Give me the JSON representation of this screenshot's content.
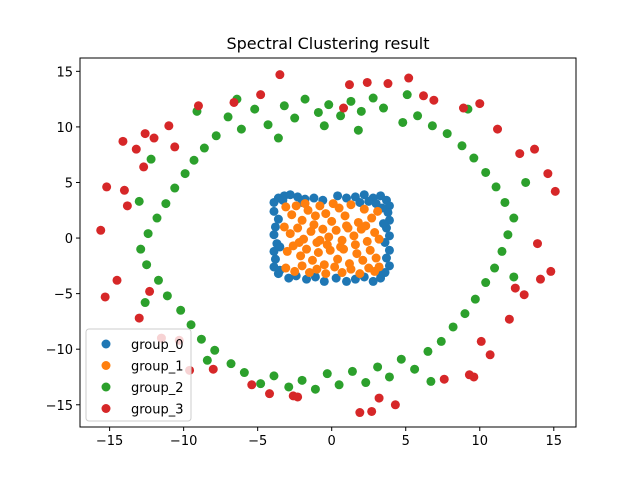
{
  "chart_data": {
    "type": "scatter",
    "title": "Spectral Clustering result",
    "xlim": [
      -17,
      16.5
    ],
    "ylim": [
      -17,
      16.2
    ],
    "x_ticks": [
      -15,
      -10,
      -5,
      0,
      5,
      10,
      15
    ],
    "y_ticks": [
      -15,
      -10,
      -5,
      0,
      5,
      10,
      15
    ],
    "grid": false,
    "legend_position": "lower-left",
    "series": [
      {
        "name": "group_0",
        "color": "#1f77b4",
        "points": [
          [
            -3.9,
            3.2
          ],
          [
            -3.6,
            3.6
          ],
          [
            -3.2,
            3.8
          ],
          [
            -2.8,
            3.9
          ],
          [
            -2.3,
            3.7
          ],
          [
            -1.8,
            3.5
          ],
          [
            -1.2,
            3.6
          ],
          [
            -0.6,
            3.4
          ],
          [
            0.4,
            3.8
          ],
          [
            1.0,
            3.6
          ],
          [
            1.6,
            3.7
          ],
          [
            2.2,
            3.9
          ],
          [
            2.8,
            3.6
          ],
          [
            3.3,
            3.8
          ],
          [
            3.7,
            3.4
          ],
          [
            3.9,
            2.9
          ],
          [
            3.8,
            2.3
          ],
          [
            3.9,
            1.6
          ],
          [
            3.7,
            0.9
          ],
          [
            3.9,
            0.2
          ],
          [
            3.6,
            -0.4
          ],
          [
            3.9,
            -1.1
          ],
          [
            3.7,
            -1.8
          ],
          [
            3.9,
            -2.5
          ],
          [
            3.6,
            -3.1
          ],
          [
            3.3,
            -3.6
          ],
          [
            2.8,
            -3.9
          ],
          [
            2.2,
            -3.5
          ],
          [
            1.6,
            -3.7
          ],
          [
            1.0,
            -3.9
          ],
          [
            0.3,
            -3.6
          ],
          [
            -0.5,
            -3.9
          ],
          [
            -1.1,
            -3.5
          ],
          [
            -1.7,
            -3.7
          ],
          [
            -2.4,
            -3.4
          ],
          [
            -2.9,
            -3.6
          ],
          [
            -3.6,
            -3.2
          ],
          [
            -3.9,
            -2.6
          ],
          [
            -3.8,
            -1.9
          ],
          [
            -3.9,
            -1.2
          ],
          [
            -3.7,
            -0.5
          ],
          [
            -3.9,
            0.3
          ],
          [
            -3.8,
            1.0
          ],
          [
            -3.6,
            1.7
          ],
          [
            -3.9,
            2.4
          ],
          [
            2.5,
            3.3
          ],
          [
            3.0,
            3.1
          ],
          [
            3.4,
            2.7
          ],
          [
            -3.3,
            3.4
          ],
          [
            -3.5,
            -2.9
          ],
          [
            3.3,
            -3.2
          ],
          [
            1.9,
            3.2
          ],
          [
            -2.0,
            3.2
          ],
          [
            3.5,
            1.3
          ],
          [
            -3.5,
            -0.8
          ]
        ]
      },
      {
        "name": "group_1",
        "color": "#ff7f0e",
        "points": [
          [
            -3.1,
            2.8
          ],
          [
            -2.7,
            2.1
          ],
          [
            -2.4,
            2.9
          ],
          [
            -2.0,
            1.6
          ],
          [
            -1.6,
            2.5
          ],
          [
            -1.2,
            1.2
          ],
          [
            -0.8,
            2.9
          ],
          [
            -0.4,
            2.2
          ],
          [
            0.0,
            1.5
          ],
          [
            0.5,
            2.7
          ],
          [
            0.9,
            2.0
          ],
          [
            1.3,
            3.0
          ],
          [
            1.8,
            1.4
          ],
          [
            2.2,
            2.6
          ],
          [
            2.7,
            1.8
          ],
          [
            3.1,
            2.4
          ],
          [
            -3.2,
            1.0
          ],
          [
            -2.8,
            0.4
          ],
          [
            -2.3,
            0.9
          ],
          [
            -1.9,
            -0.1
          ],
          [
            -1.4,
            0.6
          ],
          [
            -1.0,
            -0.4
          ],
          [
            -0.6,
            0.8
          ],
          [
            -0.2,
            0.1
          ],
          [
            0.3,
            0.7
          ],
          [
            0.7,
            -0.2
          ],
          [
            1.1,
            0.9
          ],
          [
            1.5,
            0.2
          ],
          [
            2.0,
            0.8
          ],
          [
            2.4,
            -0.3
          ],
          [
            2.9,
            0.5
          ],
          [
            3.2,
            -0.1
          ],
          [
            -3.0,
            -1.2
          ],
          [
            -2.6,
            -0.7
          ],
          [
            -2.1,
            -1.6
          ],
          [
            -1.7,
            -1.0
          ],
          [
            -1.3,
            -2.0
          ],
          [
            -0.9,
            -1.3
          ],
          [
            -0.5,
            -2.4
          ],
          [
            -0.1,
            -1.1
          ],
          [
            0.4,
            -1.9
          ],
          [
            0.8,
            -1.0
          ],
          [
            1.2,
            -2.3
          ],
          [
            1.7,
            -1.4
          ],
          [
            2.1,
            -2.0
          ],
          [
            2.6,
            -1.1
          ],
          [
            3.0,
            -1.8
          ],
          [
            3.2,
            -2.6
          ],
          [
            -3.1,
            -2.7
          ],
          [
            -2.5,
            -3.0
          ],
          [
            -2.0,
            -2.5
          ],
          [
            -1.5,
            -3.1
          ],
          [
            -1.0,
            -2.8
          ],
          [
            -0.4,
            -3.2
          ],
          [
            0.2,
            -2.6
          ],
          [
            0.7,
            -3.1
          ],
          [
            1.3,
            -2.8
          ],
          [
            1.9,
            -3.2
          ],
          [
            2.5,
            -2.7
          ],
          [
            2.9,
            -3.0
          ],
          [
            -1.8,
            3.1
          ],
          [
            0.1,
            3.1
          ],
          [
            1.0,
            1.1
          ],
          [
            -0.3,
            -0.6
          ],
          [
            2.3,
            1.1
          ],
          [
            -2.2,
            -0.4
          ],
          [
            0.6,
            -0.8
          ],
          [
            -1.1,
            2.0
          ],
          [
            1.6,
            -0.6
          ],
          [
            -0.8,
            -0.2
          ]
        ]
      },
      {
        "name": "group_2",
        "color": "#2ca02c",
        "points": [
          [
            -3.2,
            11.9
          ],
          [
            -2.5,
            10.8
          ],
          [
            -1.8,
            12.5
          ],
          [
            -0.9,
            11.3
          ],
          [
            -0.2,
            12.0
          ],
          [
            0.6,
            11.0
          ],
          [
            1.3,
            12.3
          ],
          [
            2.0,
            11.4
          ],
          [
            2.8,
            12.6
          ],
          [
            3.5,
            11.7
          ],
          [
            -4.3,
            10.2
          ],
          [
            -5.2,
            11.6
          ],
          [
            -6.1,
            9.8
          ],
          [
            -7.0,
            10.9
          ],
          [
            -7.8,
            9.2
          ],
          [
            -8.6,
            8.1
          ],
          [
            -9.3,
            7.0
          ],
          [
            -9.9,
            5.8
          ],
          [
            -10.6,
            4.5
          ],
          [
            -11.2,
            3.1
          ],
          [
            -11.8,
            1.8
          ],
          [
            -12.4,
            0.4
          ],
          [
            -12.9,
            -1.0
          ],
          [
            -12.5,
            -2.4
          ],
          [
            -11.7,
            -3.8
          ],
          [
            -11.1,
            -5.2
          ],
          [
            -10.2,
            -6.5
          ],
          [
            -9.5,
            -7.8
          ],
          [
            -8.8,
            -9.1
          ],
          [
            -7.9,
            -10.1
          ],
          [
            -6.8,
            -11.3
          ],
          [
            -5.9,
            -12.1
          ],
          [
            -4.8,
            -13.1
          ],
          [
            -3.9,
            -12.4
          ],
          [
            -2.9,
            -13.4
          ],
          [
            -2.0,
            -12.8
          ],
          [
            -1.1,
            -13.6
          ],
          [
            -0.3,
            -12.2
          ],
          [
            0.5,
            -13.2
          ],
          [
            1.4,
            -12.0
          ],
          [
            2.3,
            -13.0
          ],
          [
            3.1,
            -11.6
          ],
          [
            3.9,
            -12.5
          ],
          [
            4.7,
            -10.9
          ],
          [
            5.6,
            -11.8
          ],
          [
            6.5,
            -10.2
          ],
          [
            7.4,
            -9.3
          ],
          [
            8.2,
            -8.0
          ],
          [
            9.0,
            -6.8
          ],
          [
            9.7,
            -5.5
          ],
          [
            10.4,
            -4.0
          ],
          [
            11.0,
            -2.7
          ],
          [
            11.5,
            -1.2
          ],
          [
            11.9,
            0.3
          ],
          [
            12.3,
            1.8
          ],
          [
            11.7,
            3.2
          ],
          [
            11.1,
            4.6
          ],
          [
            10.4,
            5.9
          ],
          [
            9.6,
            7.2
          ],
          [
            8.8,
            8.3
          ],
          [
            7.8,
            9.4
          ],
          [
            6.8,
            10.1
          ],
          [
            5.8,
            11.0
          ],
          [
            4.8,
            10.4
          ],
          [
            -9.1,
            11.4
          ],
          [
            -12.2,
            7.1
          ],
          [
            -13.0,
            3.3
          ],
          [
            -12.6,
            -5.8
          ],
          [
            -8.4,
            -11.0
          ],
          [
            6.7,
            -12.9
          ],
          [
            12.3,
            -3.5
          ],
          [
            13.1,
            5.0
          ],
          [
            9.2,
            11.6
          ],
          [
            -0.5,
            10.1
          ],
          [
            -3.6,
            9.0
          ],
          [
            1.8,
            9.7
          ],
          [
            -6.4,
            12.5
          ],
          [
            5.1,
            12.9
          ]
        ]
      },
      {
        "name": "group_3",
        "color": "#d62728",
        "points": [
          [
            -15.6,
            0.7
          ],
          [
            -15.2,
            4.6
          ],
          [
            -14.5,
            -3.8
          ],
          [
            -14.0,
            4.3
          ],
          [
            -13.8,
            2.9
          ],
          [
            -13.2,
            8.0
          ],
          [
            -13.0,
            -7.2
          ],
          [
            -12.6,
            9.4
          ],
          [
            -12.3,
            -4.8
          ],
          [
            -12.0,
            9.0
          ],
          [
            -11.5,
            -9.0
          ],
          [
            -11.0,
            10.1
          ],
          [
            -10.3,
            -9.2
          ],
          [
            -9.6,
            -11.9
          ],
          [
            -9.0,
            11.9
          ],
          [
            -8.0,
            -11.8
          ],
          [
            -6.6,
            12.2
          ],
          [
            -5.4,
            -13.2
          ],
          [
            -4.8,
            12.9
          ],
          [
            -4.2,
            -14.0
          ],
          [
            -3.5,
            14.7
          ],
          [
            -2.6,
            -14.2
          ],
          [
            1.2,
            13.8
          ],
          [
            1.9,
            -15.7
          ],
          [
            2.4,
            14.0
          ],
          [
            3.2,
            -14.4
          ],
          [
            3.8,
            13.9
          ],
          [
            4.3,
            -15.0
          ],
          [
            5.2,
            14.4
          ],
          [
            6.2,
            12.8
          ],
          [
            6.9,
            12.4
          ],
          [
            7.6,
            -12.7
          ],
          [
            8.9,
            11.7
          ],
          [
            9.6,
            -12.5
          ],
          [
            10.0,
            12.1
          ],
          [
            10.7,
            -10.5
          ],
          [
            11.2,
            9.8
          ],
          [
            12.0,
            -7.3
          ],
          [
            12.7,
            7.6
          ],
          [
            13.0,
            -5.1
          ],
          [
            13.7,
            8.0
          ],
          [
            14.1,
            -3.7
          ],
          [
            14.6,
            5.8
          ],
          [
            15.1,
            4.2
          ],
          [
            14.8,
            -3.0
          ],
          [
            -15.3,
            -5.3
          ],
          [
            -12.7,
            6.4
          ],
          [
            -14.1,
            8.7
          ],
          [
            10.1,
            -9.3
          ],
          [
            13.9,
            -0.5
          ],
          [
            12.4,
            -4.5
          ],
          [
            9.3,
            -12.3
          ],
          [
            2.7,
            -15.6
          ],
          [
            -2.3,
            -14.3
          ],
          [
            0.8,
            11.7
          ],
          [
            -10.6,
            8.2
          ]
        ]
      }
    ]
  }
}
